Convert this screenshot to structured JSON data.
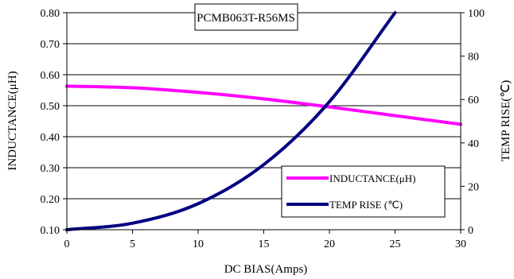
{
  "chart_data": {
    "type": "line",
    "title": "PCMB063T-R56MS",
    "xlabel": "DC BIAS(Amps)",
    "ylabel_left": "INDUCTANCE(μH)",
    "ylabel_right": "TEMP RISE(℃)",
    "xlim": [
      0,
      30
    ],
    "ylim_left": [
      0.1,
      0.8
    ],
    "ylim_right": [
      0,
      100
    ],
    "x_ticks": [
      "0",
      "5",
      "10",
      "15",
      "20",
      "25",
      "30"
    ],
    "y_left_ticks": [
      "0.10",
      "0.20",
      "0.30",
      "0.40",
      "0.50",
      "0.60",
      "0.70",
      "0.80"
    ],
    "y_right_ticks": [
      "0",
      "20",
      "40",
      "60",
      "80",
      "100"
    ],
    "grid": "horizontal",
    "legend_position": "bottom-right",
    "series": [
      {
        "name": "INDUCTANCE(μH)",
        "axis": "left",
        "color": "#ff00ff",
        "x": [
          0,
          5,
          10,
          15,
          20,
          25,
          30
        ],
        "y": [
          0.563,
          0.558,
          0.543,
          0.522,
          0.496,
          0.468,
          0.44
        ]
      },
      {
        "name": "TEMP RISE (℃)",
        "axis": "right",
        "color": "#000080",
        "x": [
          0,
          5,
          10,
          15,
          20,
          25
        ],
        "y": [
          0,
          3,
          12,
          30,
          59,
          100
        ]
      }
    ]
  }
}
